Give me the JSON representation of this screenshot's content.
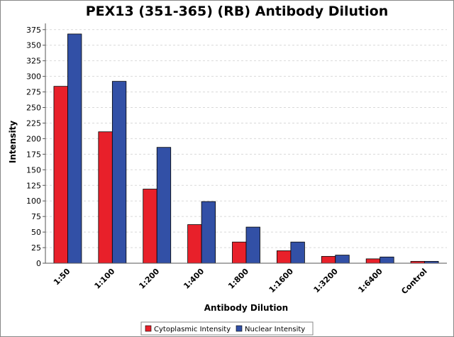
{
  "chart_data": {
    "type": "bar",
    "title": "PEX13 (351-365) (RB) Antibody Dilution",
    "xlabel": "Antibody Dilution",
    "ylabel": "Intensity",
    "categories": [
      "1:50",
      "1:100",
      "1:200",
      "1:400",
      "1:800",
      "1:1600",
      "1:3200",
      "1:6400",
      "Control"
    ],
    "series": [
      {
        "name": "Cytoplasmic Intensity",
        "color": "#e8202a",
        "values": [
          284,
          211,
          119,
          62,
          34,
          20,
          11,
          7,
          3
        ]
      },
      {
        "name": "Nuclear Intensity",
        "color": "#3250a6",
        "values": [
          368,
          292,
          186,
          99,
          58,
          34,
          13,
          10,
          3
        ]
      }
    ],
    "yticks": [
      0,
      25,
      50,
      75,
      100,
      125,
      150,
      175,
      200,
      225,
      250,
      275,
      300,
      325,
      350,
      375
    ],
    "ylim": [
      0,
      385
    ],
    "grid": true,
    "legend_position": "bottom-center"
  }
}
